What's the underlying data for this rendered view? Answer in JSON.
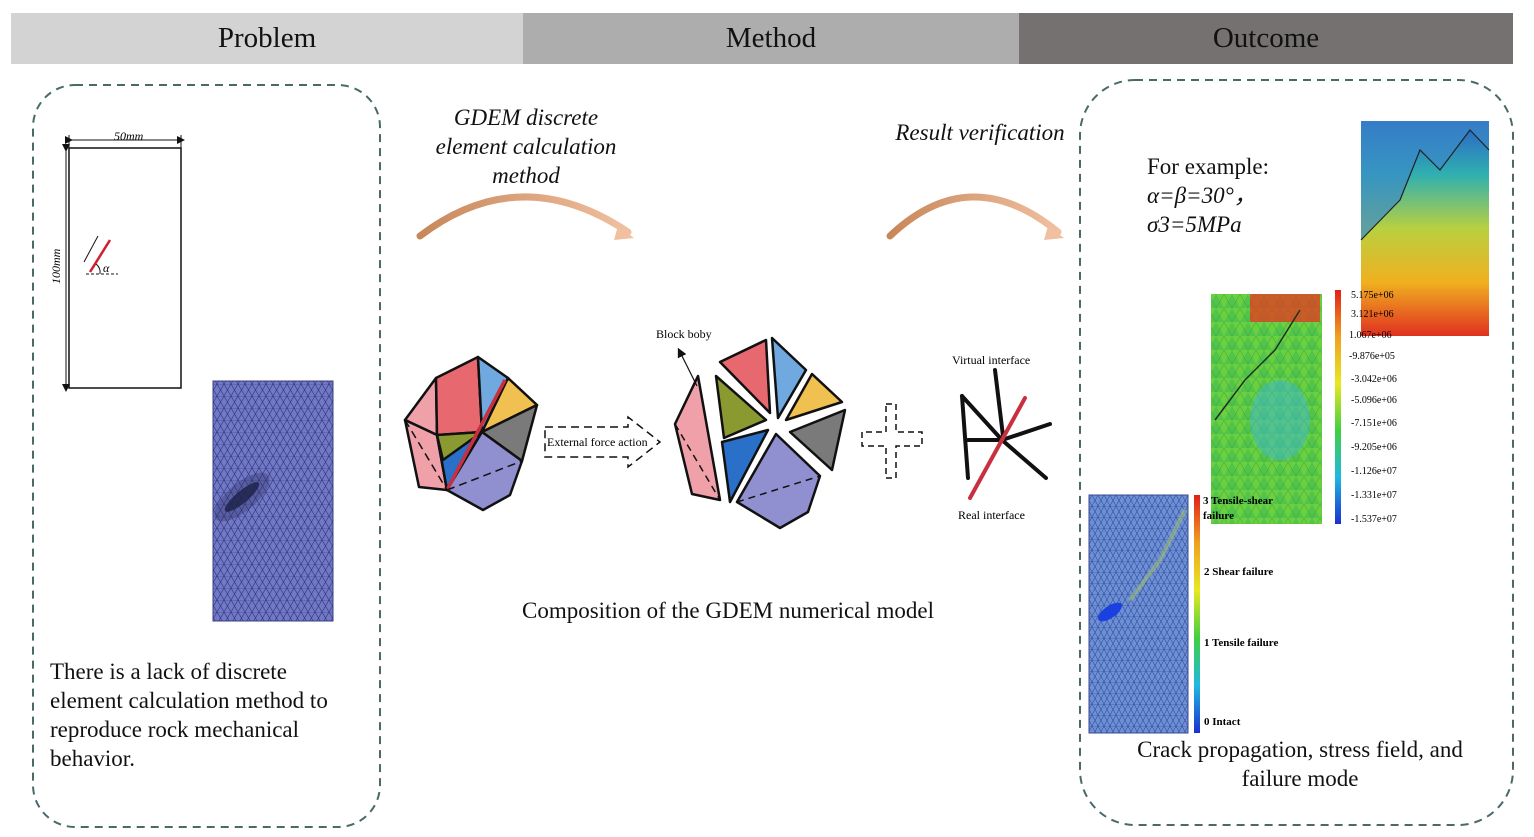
{
  "headers": {
    "problem": "Problem",
    "method": "Method",
    "outcome": "Outcome"
  },
  "problem": {
    "dim_width": "50mm",
    "dim_height": "100mm",
    "angle_label": "α",
    "description": "There is a lack of discrete element calculation method to reproduce rock mechanical behavior."
  },
  "method": {
    "arrow1_label": "GDEM discrete element calculation method",
    "arrow2_label": "Result verification",
    "block_body": "Block boby",
    "external_force": "External force action",
    "virtual_interface": "Virtual interface",
    "real_interface": "Real interface",
    "caption": "Composition of the GDEM numerical model"
  },
  "outcome": {
    "example_l1": "For example:",
    "example_l2": "α=β=30°，",
    "example_l3": "σ3=5MPa",
    "stress_ticks": [
      "5.175e+06",
      "3.121e+06",
      "1.067e+06",
      "-9.876e+05",
      "-3.042e+06",
      "-5.096e+06",
      "-7.151e+06",
      "-9.205e+06",
      "-1.126e+07",
      "-1.331e+07",
      "-1.537e+07"
    ],
    "failure_l3a": "3  Tensile-shear",
    "failure_l3b": "failure",
    "failure_l2": "2 Shear failure",
    "failure_l1": "1  Tensile failure",
    "failure_l0": "0 Intact",
    "caption": "Crack propagation, stress field, and failure mode"
  },
  "colors": {
    "arrow": "#d4905a",
    "mesh": "#7b7fcc",
    "dashed_border": "#4a6a6a"
  }
}
